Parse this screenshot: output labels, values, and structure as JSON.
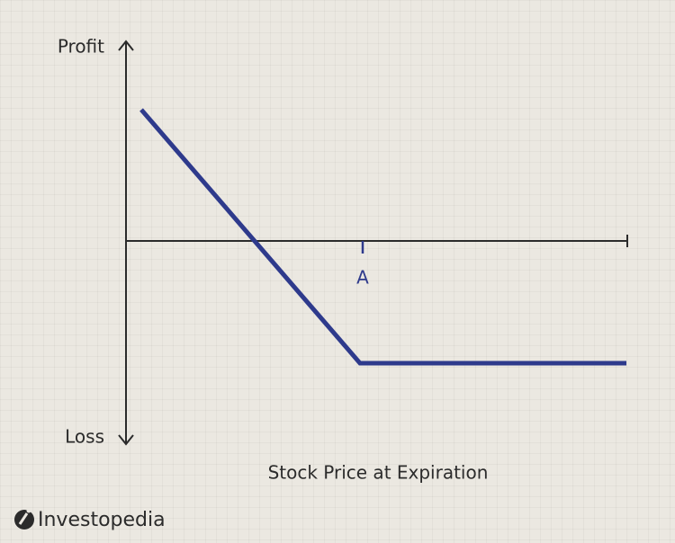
{
  "diagram": {
    "y_top_label": "Profit",
    "y_bottom_label": "Loss",
    "strike_label": "A",
    "x_label": "Stock Price at Expiration"
  },
  "logo": {
    "text": "Investopedia"
  }
}
